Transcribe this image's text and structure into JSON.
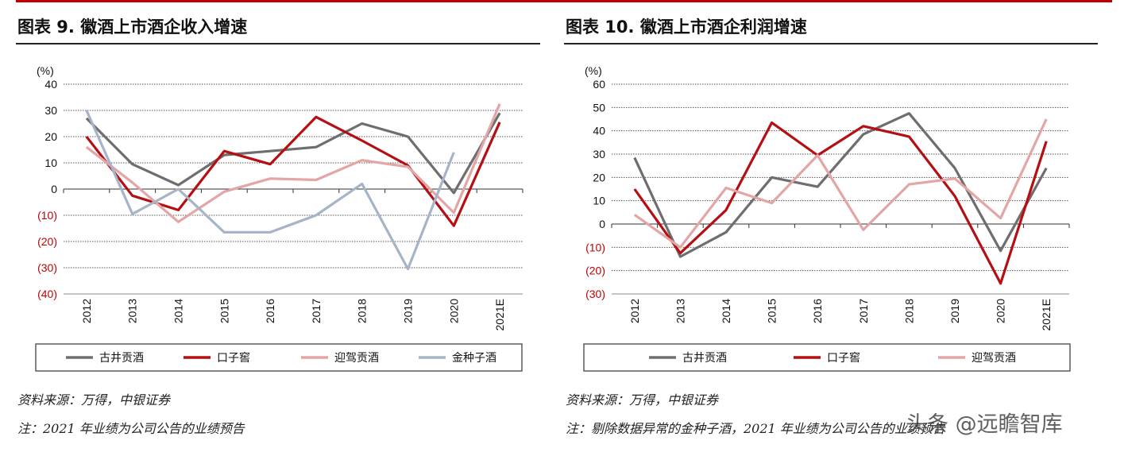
{
  "chart_data": [
    {
      "type": "line",
      "title": "图表 9. 徽酒上市酒企收入增速",
      "ylabel": "(%)",
      "categories": [
        "2012",
        "2013",
        "2014",
        "2015",
        "2016",
        "2017",
        "2018",
        "2019",
        "2020",
        "2021E"
      ],
      "ylim": [
        -40,
        40
      ],
      "yticks": [
        40,
        30,
        20,
        10,
        0,
        -10,
        -20,
        -30,
        -40
      ],
      "ytick_labels": [
        "40",
        "30",
        "20",
        "10",
        "0",
        "(10)",
        "(20)",
        "(30)",
        "(40)"
      ],
      "series": [
        {
          "name": "古井贡酒",
          "color": "#6e6e6e",
          "values": [
            27,
            9.5,
            1.5,
            13,
            14.5,
            16,
            25,
            20,
            -1.5,
            29
          ]
        },
        {
          "name": "口子窖",
          "color": "#b50f14",
          "values": [
            20,
            -2.5,
            -8,
            14.5,
            9.5,
            27.5,
            18.5,
            9,
            -14,
            25.5
          ]
        },
        {
          "name": "迎驾贡酒",
          "color": "#e3a5a5",
          "values": [
            16,
            2.5,
            -12.5,
            -1,
            4,
            3.5,
            11,
            8.5,
            -9,
            32.5
          ]
        },
        {
          "name": "金种子酒",
          "color": "#a6b4c8",
          "values": [
            30,
            -9.5,
            0,
            -16.5,
            -16.5,
            -10,
            2,
            -30.5,
            14,
            null
          ]
        }
      ],
      "source": "资料来源：万得，中银证券",
      "note": "注：2021 年业绩为公司公告的业绩预告"
    },
    {
      "type": "line",
      "title": "图表 10. 徽酒上市酒企利润增速",
      "ylabel": "(%)",
      "categories": [
        "2012",
        "2013",
        "2014",
        "2015",
        "2016",
        "2017",
        "2018",
        "2019",
        "2020",
        "2021E"
      ],
      "ylim": [
        -30,
        60
      ],
      "yticks": [
        60,
        50,
        40,
        30,
        20,
        10,
        0,
        -10,
        -20,
        -30
      ],
      "ytick_labels": [
        "60",
        "50",
        "40",
        "30",
        "20",
        "10",
        "0",
        "(10)",
        "(20)",
        "(30)"
      ],
      "series": [
        {
          "name": "古井贡酒",
          "color": "#6e6e6e",
          "values": [
            28.5,
            -14,
            -3.5,
            20,
            16,
            38.5,
            47.5,
            24,
            -11.5,
            24
          ]
        },
        {
          "name": "口子窖",
          "color": "#b50f14",
          "values": [
            15,
            -12.5,
            6,
            43.5,
            29.5,
            42,
            37.5,
            12,
            -25.5,
            35.5
          ]
        },
        {
          "name": "迎驾贡酒",
          "color": "#e3a5a5",
          "values": [
            4,
            -10,
            15.5,
            9,
            29.5,
            -2.5,
            17,
            19.5,
            2.5,
            45
          ]
        }
      ],
      "source": "资料来源：万得，中银证券",
      "note": "注：剔除数据异常的金种子酒，2021 年业绩为公司公告的业绩预告"
    }
  ],
  "colors": {
    "accent": "#c00000",
    "negative_tick": "#c00000"
  },
  "watermark": "头条 @远瞻智库"
}
